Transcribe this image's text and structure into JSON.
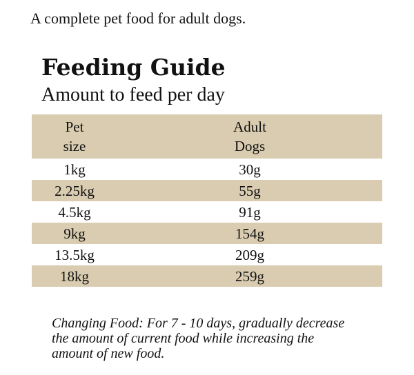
{
  "intro": "A complete pet food for adult dogs.",
  "title": "Feeding Guide",
  "subtitle": "Amount to feed per day",
  "table": {
    "headers": [
      [
        "Pet",
        "size"
      ],
      [
        "Adult",
        "Dogs"
      ]
    ],
    "rows": [
      [
        "1kg",
        "30g"
      ],
      [
        "2.25kg",
        "55g"
      ],
      [
        "4.5kg",
        "91g"
      ],
      [
        "9kg",
        "154g"
      ],
      [
        "13.5kg",
        "209g"
      ],
      [
        "18kg",
        "259g"
      ]
    ]
  },
  "note": [
    "Changing Food: For 7 - 10 days, gradually decrease",
    "the amount of current food while increasing the",
    "amount of new food."
  ]
}
